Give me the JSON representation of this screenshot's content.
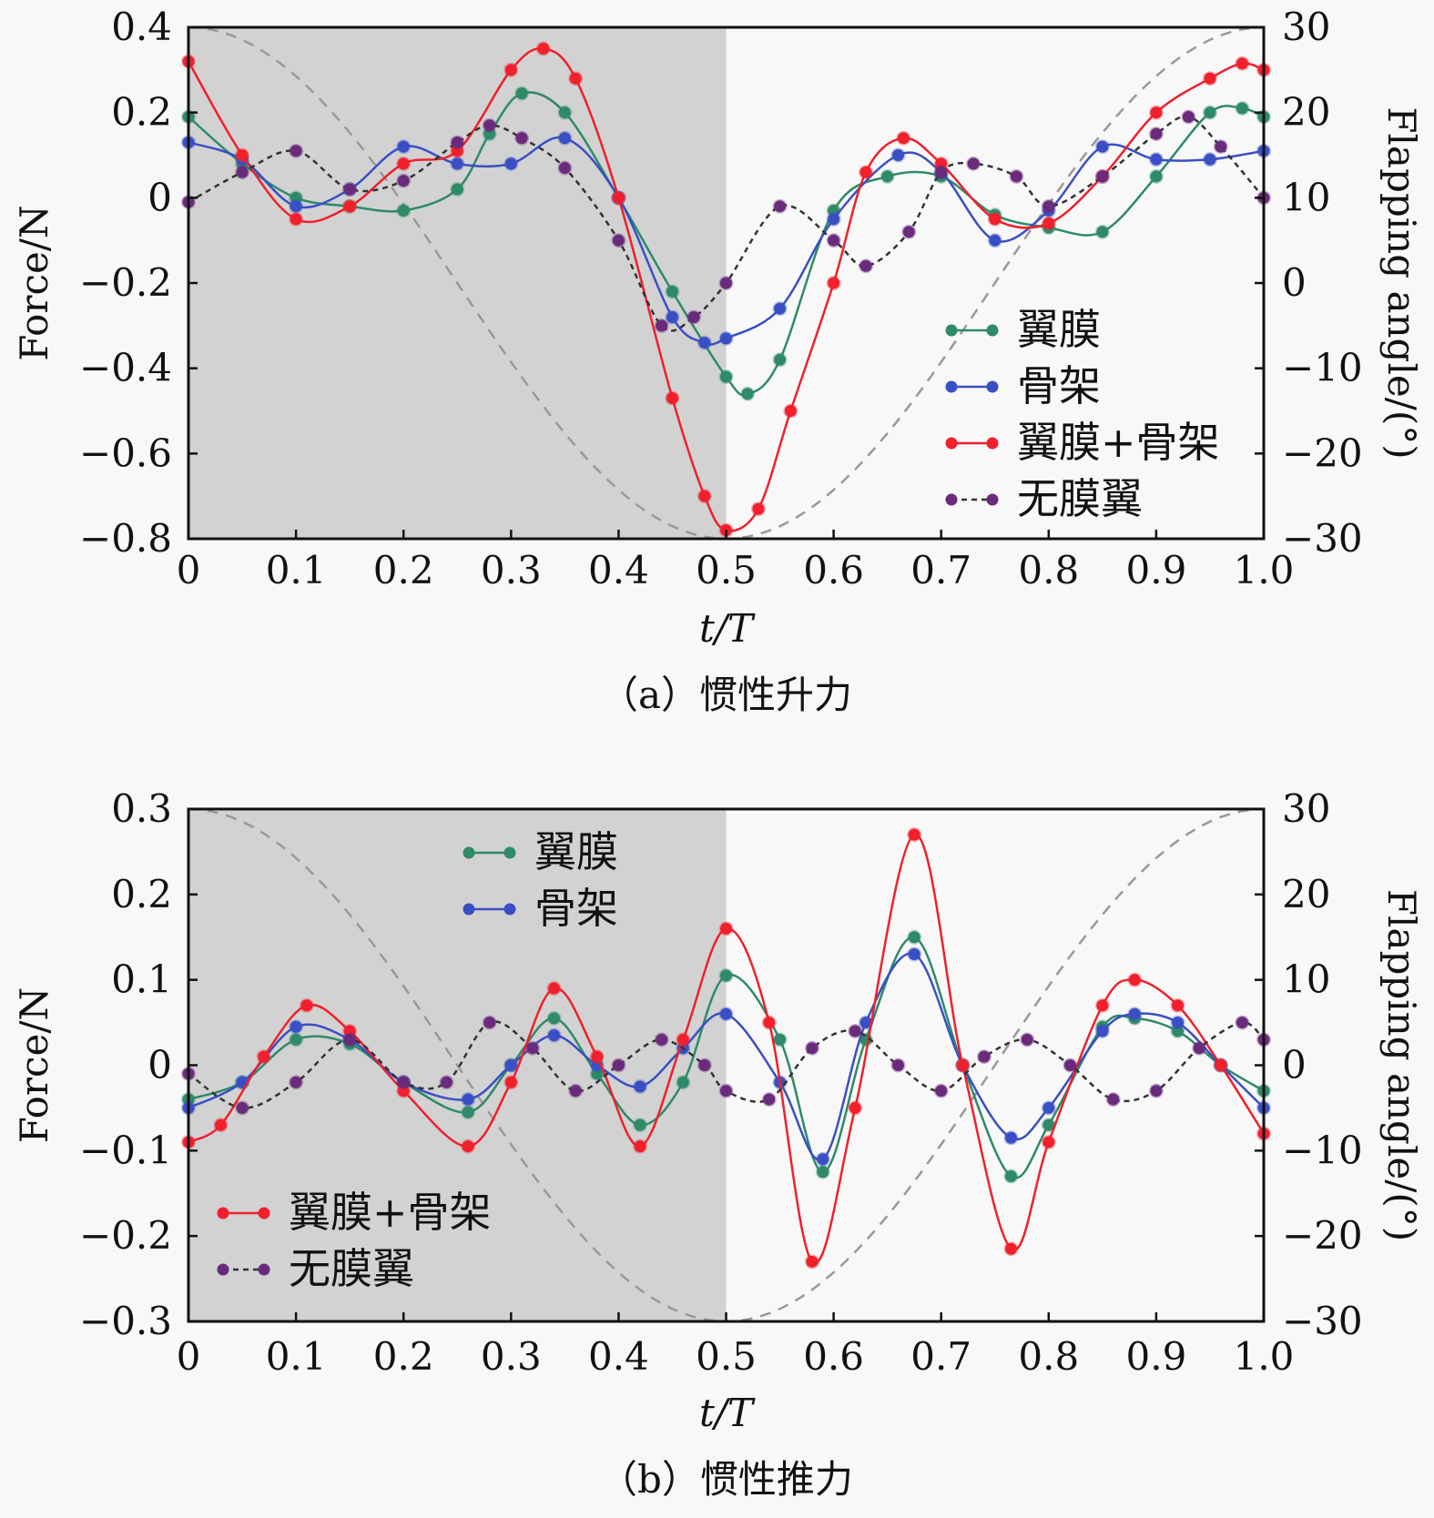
{
  "chart_data": [
    {
      "type": "line",
      "caption": "（a）惯性升力",
      "xlabel": "t/T",
      "ylabel": "Force/N",
      "y2label": "Flapping angle/(°)",
      "xlim": [
        0,
        1.0
      ],
      "ylim": [
        -0.8,
        0.4
      ],
      "y2lim": [
        -30,
        30
      ],
      "xticks": [
        "0",
        "0.1",
        "0.2",
        "0.3",
        "0.4",
        "0.5",
        "0.6",
        "0.7",
        "0.8",
        "0.9",
        "1.0"
      ],
      "yticks": [
        "0.4",
        "0.2",
        "0",
        "−0.2",
        "−0.4",
        "−0.6",
        "−0.8"
      ],
      "y2ticks": [
        "30",
        "20",
        "10",
        "0",
        "−10",
        "−20",
        "−30"
      ],
      "shaded_region": [
        0,
        0.5
      ],
      "legend_placement": "lower-right",
      "flapping_angle": {
        "amplitude_deg": 30,
        "form": "30·cos(2πt/T)"
      },
      "series": [
        {
          "name": "翼膜",
          "color": "#2f8a68",
          "dash": false,
          "x": [
            0,
            0.05,
            0.1,
            0.15,
            0.2,
            0.25,
            0.28,
            0.31,
            0.35,
            0.4,
            0.45,
            0.5,
            0.52,
            0.55,
            0.6,
            0.65,
            0.7,
            0.75,
            0.8,
            0.85,
            0.9,
            0.95,
            0.98,
            1.0
          ],
          "y": [
            0.19,
            0.08,
            0.0,
            -0.02,
            -0.03,
            0.02,
            0.15,
            0.245,
            0.2,
            0.0,
            -0.22,
            -0.42,
            -0.46,
            -0.38,
            -0.03,
            0.05,
            0.05,
            -0.04,
            -0.07,
            -0.08,
            0.05,
            0.2,
            0.21,
            0.19
          ]
        },
        {
          "name": "骨架",
          "color": "#3a4fc4",
          "dash": false,
          "x": [
            0,
            0.05,
            0.1,
            0.15,
            0.2,
            0.25,
            0.3,
            0.35,
            0.4,
            0.45,
            0.48,
            0.5,
            0.55,
            0.6,
            0.66,
            0.7,
            0.75,
            0.8,
            0.85,
            0.9,
            0.95,
            1.0
          ],
          "y": [
            0.13,
            0.09,
            -0.02,
            0.02,
            0.12,
            0.08,
            0.08,
            0.14,
            0.0,
            -0.28,
            -0.34,
            -0.33,
            -0.26,
            -0.05,
            0.1,
            0.06,
            -0.1,
            -0.03,
            0.12,
            0.09,
            0.09,
            0.11
          ]
        },
        {
          "name": "翼膜+骨架",
          "color": "#f0202c",
          "dash": false,
          "x": [
            0,
            0.05,
            0.1,
            0.15,
            0.2,
            0.25,
            0.3,
            0.33,
            0.36,
            0.4,
            0.45,
            0.48,
            0.5,
            0.53,
            0.56,
            0.6,
            0.63,
            0.665,
            0.7,
            0.75,
            0.8,
            0.85,
            0.9,
            0.95,
            0.98,
            1.0
          ],
          "y": [
            0.32,
            0.1,
            -0.05,
            -0.02,
            0.08,
            0.11,
            0.3,
            0.35,
            0.28,
            0.0,
            -0.47,
            -0.7,
            -0.78,
            -0.73,
            -0.5,
            -0.2,
            0.06,
            0.14,
            0.08,
            -0.05,
            -0.06,
            0.05,
            0.2,
            0.28,
            0.315,
            0.3
          ]
        },
        {
          "name": "无膜翼",
          "color": "#6a2b7c",
          "dash": true,
          "x": [
            0,
            0.05,
            0.1,
            0.15,
            0.2,
            0.25,
            0.28,
            0.31,
            0.35,
            0.4,
            0.44,
            0.47,
            0.5,
            0.55,
            0.6,
            0.63,
            0.67,
            0.7,
            0.73,
            0.77,
            0.8,
            0.85,
            0.9,
            0.93,
            0.96,
            1.0
          ],
          "y": [
            -0.01,
            0.06,
            0.11,
            0.02,
            0.04,
            0.13,
            0.17,
            0.14,
            0.07,
            -0.1,
            -0.3,
            -0.28,
            -0.2,
            -0.02,
            -0.1,
            -0.16,
            -0.08,
            0.06,
            0.08,
            0.05,
            -0.02,
            0.05,
            0.15,
            0.19,
            0.12,
            0.0
          ]
        }
      ]
    },
    {
      "type": "line",
      "caption": "（b）惯性推力",
      "xlabel": "t/T",
      "ylabel": "Force/N",
      "y2label": "Flapping angle/(°)",
      "xlim": [
        0,
        1.0
      ],
      "ylim": [
        -0.3,
        0.3
      ],
      "y2lim": [
        -30,
        30
      ],
      "xticks": [
        "0",
        "0.1",
        "0.2",
        "0.3",
        "0.4",
        "0.5",
        "0.6",
        "0.7",
        "0.8",
        "0.9",
        "1.0"
      ],
      "yticks": [
        "0.3",
        "0.2",
        "0.1",
        "0",
        "−0.1",
        "−0.2",
        "−0.3"
      ],
      "y2ticks": [
        "30",
        "20",
        "10",
        "0",
        "−10",
        "−20",
        "−30"
      ],
      "shaded_region": [
        0,
        0.5
      ],
      "legend_placement": "top-center and lower-left",
      "flapping_angle": {
        "amplitude_deg": 30,
        "form": "30·cos(2πt/T)"
      },
      "series": [
        {
          "name": "翼膜",
          "color": "#2f8a68",
          "dash": false,
          "x": [
            0,
            0.05,
            0.1,
            0.15,
            0.2,
            0.26,
            0.3,
            0.34,
            0.38,
            0.42,
            0.46,
            0.5,
            0.55,
            0.59,
            0.63,
            0.675,
            0.72,
            0.765,
            0.8,
            0.85,
            0.88,
            0.92,
            0.96,
            1.0
          ],
          "y": [
            -0.04,
            -0.02,
            0.03,
            0.025,
            -0.02,
            -0.055,
            0.0,
            0.055,
            -0.01,
            -0.07,
            -0.02,
            0.105,
            0.03,
            -0.125,
            0.03,
            0.15,
            0.0,
            -0.13,
            -0.07,
            0.045,
            0.055,
            0.04,
            0.0,
            -0.03
          ]
        },
        {
          "name": "骨架",
          "color": "#3a4fc4",
          "dash": false,
          "x": [
            0,
            0.05,
            0.1,
            0.15,
            0.2,
            0.26,
            0.3,
            0.34,
            0.38,
            0.42,
            0.46,
            0.5,
            0.55,
            0.59,
            0.63,
            0.675,
            0.72,
            0.765,
            0.8,
            0.85,
            0.88,
            0.92,
            0.96,
            1.0
          ],
          "y": [
            -0.05,
            -0.02,
            0.045,
            0.03,
            -0.02,
            -0.04,
            0.0,
            0.035,
            0.0,
            -0.025,
            0.02,
            0.06,
            -0.02,
            -0.11,
            0.05,
            0.13,
            0.0,
            -0.085,
            -0.05,
            0.04,
            0.06,
            0.05,
            0.0,
            -0.05
          ]
        },
        {
          "name": "翼膜+骨架",
          "color": "#f0202c",
          "dash": false,
          "x": [
            0,
            0.03,
            0.07,
            0.11,
            0.15,
            0.2,
            0.26,
            0.3,
            0.34,
            0.38,
            0.42,
            0.46,
            0.5,
            0.54,
            0.58,
            0.62,
            0.675,
            0.72,
            0.765,
            0.8,
            0.85,
            0.88,
            0.92,
            0.96,
            1.0
          ],
          "y": [
            -0.09,
            -0.07,
            0.01,
            0.07,
            0.04,
            -0.03,
            -0.095,
            -0.02,
            0.09,
            0.01,
            -0.095,
            0.03,
            0.16,
            0.05,
            -0.23,
            -0.05,
            0.27,
            0.0,
            -0.215,
            -0.09,
            0.07,
            0.1,
            0.07,
            0.0,
            -0.08
          ]
        },
        {
          "name": "无膜翼",
          "color": "#6a2b7c",
          "dash": true,
          "x": [
            0,
            0.05,
            0.1,
            0.15,
            0.2,
            0.24,
            0.28,
            0.32,
            0.36,
            0.4,
            0.44,
            0.48,
            0.5,
            0.54,
            0.58,
            0.62,
            0.66,
            0.7,
            0.74,
            0.78,
            0.82,
            0.86,
            0.9,
            0.94,
            0.98,
            1.0
          ],
          "y": [
            -0.01,
            -0.05,
            -0.02,
            0.03,
            -0.02,
            -0.02,
            0.05,
            0.02,
            -0.03,
            0.0,
            0.03,
            0.0,
            -0.03,
            -0.04,
            0.02,
            0.04,
            0.0,
            -0.03,
            0.01,
            0.03,
            0.0,
            -0.04,
            -0.03,
            0.02,
            0.05,
            0.03
          ]
        }
      ]
    }
  ]
}
